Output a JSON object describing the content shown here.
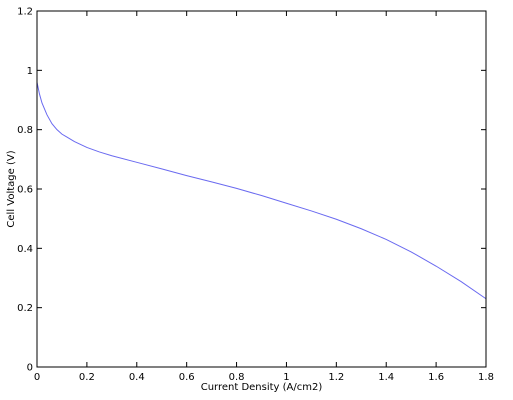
{
  "chart_data": {
    "type": "line",
    "title": "",
    "xlabel": "Current Density (A/cm2)",
    "ylabel": "Cell Voltage (V)",
    "xlim": [
      0,
      1.8
    ],
    "ylim": [
      0,
      1.2
    ],
    "xticks": [
      0,
      0.2,
      0.4,
      0.6,
      0.8,
      1.0,
      1.2,
      1.4,
      1.6,
      1.8
    ],
    "xtick_labels": [
      "0",
      "0.2",
      "0.4",
      "0.6",
      "0.8",
      "1",
      "1.2",
      "1.4",
      "1.6",
      "1.8"
    ],
    "yticks": [
      0,
      0.2,
      0.4,
      0.6,
      0.8,
      1.0,
      1.2
    ],
    "ytick_labels": [
      "0",
      "0.2",
      "0.4",
      "0.6",
      "0.8",
      "1",
      "1.2"
    ],
    "grid": false,
    "series": [
      {
        "color": "#6a6af0",
        "x": [
          0,
          0.01,
          0.02,
          0.04,
          0.06,
          0.08,
          0.1,
          0.12,
          0.15,
          0.2,
          0.25,
          0.3,
          0.4,
          0.5,
          0.6,
          0.7,
          0.8,
          0.9,
          1.0,
          1.1,
          1.2,
          1.3,
          1.4,
          1.5,
          1.6,
          1.7,
          1.8
        ],
        "y": [
          0.96,
          0.92,
          0.89,
          0.85,
          0.82,
          0.8,
          0.785,
          0.775,
          0.76,
          0.74,
          0.725,
          0.712,
          0.69,
          0.668,
          0.645,
          0.624,
          0.602,
          0.578,
          0.552,
          0.526,
          0.498,
          0.466,
          0.43,
          0.388,
          0.34,
          0.288,
          0.23
        ]
      }
    ]
  }
}
